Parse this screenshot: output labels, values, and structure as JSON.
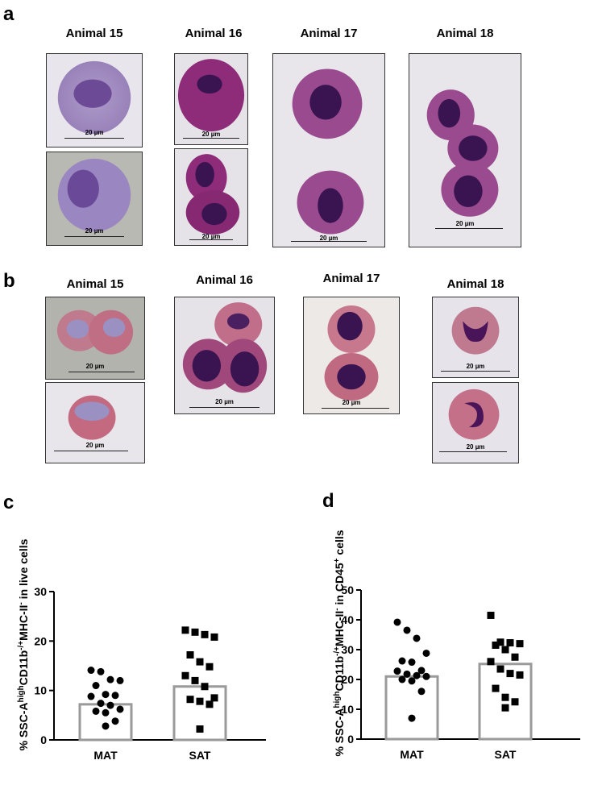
{
  "panels": {
    "a": {
      "letter": "a",
      "columns": [
        "Animal 15",
        "Animal 16",
        "Animal 17",
        "Animal 18"
      ],
      "scale_label": "20 µm"
    },
    "b": {
      "letter": "b",
      "columns": [
        "Animal 15",
        "Animal 16",
        "Animal 17",
        "Animal 18"
      ],
      "scale_label": "20 µm"
    },
    "c": {
      "letter": "c"
    },
    "d": {
      "letter": "d"
    }
  },
  "chart_data": [
    {
      "type": "bar",
      "panel": "c",
      "ylabel_parts": [
        "% SSC-A",
        "high",
        "CD11b",
        "-/+",
        "MHC-II",
        "-",
        " in live cells"
      ],
      "categories": [
        "MAT",
        "SAT"
      ],
      "values": [
        7.2,
        10.8
      ],
      "ylim": [
        0,
        30
      ],
      "yticks": [
        0,
        10,
        20,
        30
      ],
      "points": {
        "MAT": [
          14.1,
          13.8,
          12.2,
          12.0,
          11.0,
          9.2,
          9.0,
          8.8,
          7.4,
          7.0,
          6.2,
          5.8,
          5.5,
          3.8,
          2.8
        ],
        "SAT": [
          22.2,
          21.8,
          21.3,
          20.8,
          17.2,
          15.8,
          14.8,
          13.0,
          12.0,
          10.8,
          8.5,
          8.2,
          7.8,
          7.2,
          2.2
        ]
      },
      "markers": {
        "MAT": "circle",
        "SAT": "square"
      }
    },
    {
      "type": "bar",
      "panel": "d",
      "ylabel_parts": [
        "% SSC-A",
        "high",
        "CD11b",
        "-/+",
        "MHC-II",
        "-",
        " in CD45",
        "+",
        " cells"
      ],
      "categories": [
        "MAT",
        "SAT"
      ],
      "values": [
        21.0,
        25.2
      ],
      "ylim": [
        0,
        50
      ],
      "yticks": [
        0,
        10,
        20,
        30,
        40,
        50
      ],
      "points": {
        "MAT": [
          39.2,
          36.5,
          33.8,
          28.8,
          26.2,
          25.8,
          23.0,
          22.8,
          21.8,
          21.3,
          21.0,
          20.0,
          19.5,
          16.0,
          7.0
        ],
        "SAT": [
          41.5,
          32.5,
          32.3,
          32.0,
          31.5,
          30.0,
          27.5,
          26.0,
          23.5,
          22.0,
          21.5,
          17.0,
          14.0,
          12.5,
          10.5
        ]
      },
      "markers": {
        "MAT": "circle",
        "SAT": "square"
      }
    }
  ]
}
